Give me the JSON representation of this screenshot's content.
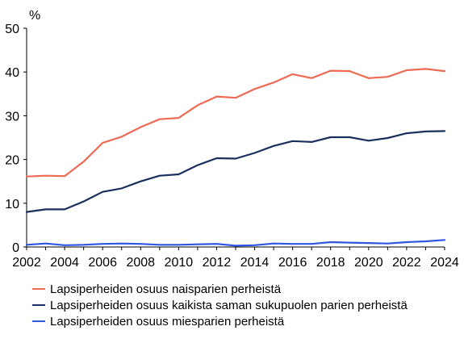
{
  "chart_data": {
    "type": "line",
    "unit_label": "%",
    "ylim": [
      0,
      50
    ],
    "yticks": [
      0,
      10,
      20,
      30,
      40,
      50
    ],
    "xlim": [
      2002,
      2024
    ],
    "xticks": [
      2002,
      2004,
      2006,
      2008,
      2010,
      2012,
      2014,
      2016,
      2018,
      2020,
      2022,
      2024
    ],
    "x": [
      2002,
      2003,
      2004,
      2005,
      2006,
      2007,
      2008,
      2009,
      2010,
      2011,
      2012,
      2013,
      2014,
      2015,
      2016,
      2017,
      2018,
      2019,
      2020,
      2021,
      2022,
      2023,
      2024
    ],
    "grid": false,
    "legend_position": "bottom",
    "series": [
      {
        "name": "Lapsiperheiden osuus naisparien perheistä",
        "color": "#ee6a55",
        "values": [
          16.1,
          16.3,
          16.2,
          19.5,
          23.8,
          25.2,
          27.4,
          29.2,
          29.5,
          32.4,
          34.4,
          34.1,
          36.1,
          37.6,
          39.5,
          38.6,
          40.3,
          40.2,
          38.6,
          38.9,
          40.4,
          40.7,
          40.2
        ]
      },
      {
        "name": "Lapsiperheiden osuus kaikista saman sukupuolen parien perheistä",
        "color": "#1b2f5e",
        "values": [
          8.0,
          8.6,
          8.6,
          10.4,
          12.6,
          13.4,
          15.0,
          16.3,
          16.6,
          18.7,
          20.3,
          20.2,
          21.5,
          23.1,
          24.2,
          24.0,
          25.1,
          25.1,
          24.3,
          24.9,
          26.0,
          26.4,
          26.5
        ]
      },
      {
        "name": "Lapsiperheiden osuus miesparien perheistä",
        "color": "#2f56e0",
        "values": [
          0.5,
          0.8,
          0.4,
          0.5,
          0.7,
          0.8,
          0.7,
          0.5,
          0.5,
          0.6,
          0.7,
          0.3,
          0.4,
          0.8,
          0.7,
          0.7,
          1.1,
          1.0,
          0.9,
          0.8,
          1.1,
          1.3,
          1.6
        ]
      }
    ]
  }
}
